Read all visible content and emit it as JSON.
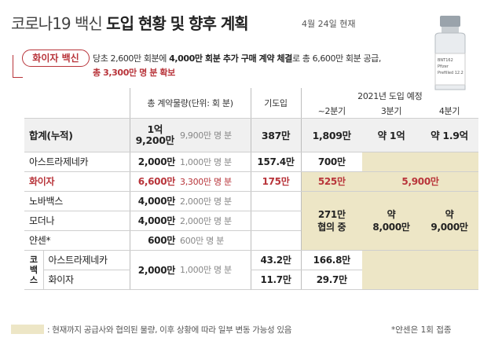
{
  "title": {
    "light": "코로나19 백신",
    "bold": "도입 현황 및 향후 계획",
    "date": "4월 24일 현재"
  },
  "vial_label": [
    "BNT162",
    "Pfizer",
    "Prefilled 12.2"
  ],
  "badge": "화이자 백신",
  "note": {
    "a": "당초 2,600만 회분에 ",
    "b": "4,000만 회분 추가 구매 계약 체결",
    "c": "로 총 6,600만 회분 공급,",
    "line2": "총 3,300만 명 분 확보"
  },
  "header": {
    "contract": "총 계약물량(단위: 회 분)",
    "introduced": "기도입",
    "plan": "2021년 도입 예정",
    "q2": "~2분기",
    "q3": "3분기",
    "q4": "4분기"
  },
  "total": {
    "label": "합계(누적)",
    "doses": "1억\n9,200만",
    "people": "9,900만 명 분",
    "introduced": "387만",
    "q2": "1,809만",
    "q3": "약 1억",
    "q4": "약 1.9억"
  },
  "rows": [
    {
      "name": "아스트라제네카",
      "doses": "2,000만",
      "people": "1,000만 명 분",
      "introduced": "157.4만",
      "q2": "700만"
    },
    {
      "name": "화이자",
      "doses": "6,600만",
      "people": "3,300만 명 분",
      "introduced": "175만",
      "q2": "525만",
      "q34": "5,900만"
    },
    {
      "name": "노바백스",
      "doses": "4,000만",
      "people": "2,000만 명 분"
    },
    {
      "name": "모더나",
      "doses": "4,000만",
      "people": "2,000만 명 분"
    },
    {
      "name": "얀센*",
      "doses": "600만",
      "people": "600만 명 분"
    }
  ],
  "merged": {
    "q2": "271만\n협의 중",
    "q3": "약\n8,000만",
    "q4": "약\n9,000만"
  },
  "covax": {
    "label": "코\n백\n스",
    "doses": "2,000만",
    "people": "1,000만 명 분",
    "rows": [
      {
        "name": "아스트라제네카",
        "introduced": "43.2만",
        "q2": "166.8만"
      },
      {
        "name": "화이자",
        "introduced": "11.7만",
        "q2": "29.7만"
      }
    ]
  },
  "footer": {
    "legend": ": 현재까지 공급사와 협의된 물량, 이후 상황에 따라 일부 변동 가능성 있음",
    "right": "*얀센은 1회 접종"
  }
}
